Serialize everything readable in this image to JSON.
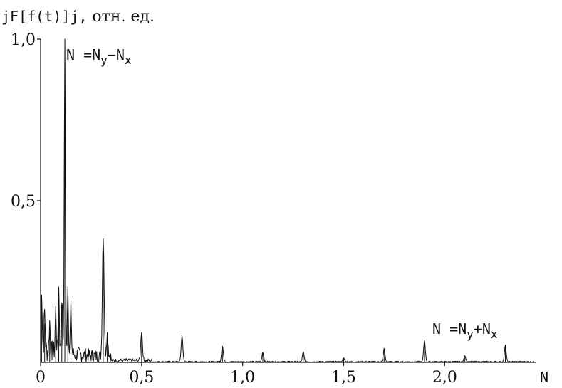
{
  "chart_data": {
    "type": "line",
    "ylabel_prefix": "jF[f(t)]j,",
    "ylabel_suffix": " отн. ед.",
    "xlabel": "N",
    "xlim": [
      0,
      2.45
    ],
    "ylim": [
      0,
      1.0
    ],
    "x_ticks": [
      {
        "value": 0,
        "label": "0"
      },
      {
        "value": 0.5,
        "label": "0,5"
      },
      {
        "value": 1.0,
        "label": "1,0"
      },
      {
        "value": 1.5,
        "label": "1,5"
      },
      {
        "value": 2.0,
        "label": "2,0"
      }
    ],
    "y_ticks": [
      {
        "value": 0.5,
        "label": "0,5"
      },
      {
        "value": 1.0,
        "label": "1,0"
      }
    ],
    "annotations": [
      {
        "text": "N =N y−N x",
        "parts": [
          "N =N",
          "y",
          "−N",
          "x"
        ]
      },
      {
        "text": "N =N y+N x",
        "parts": [
          "N =N",
          "y",
          "+N",
          "x"
        ]
      }
    ],
    "peaks": [
      {
        "x": 0.005,
        "y": 0.2
      },
      {
        "x": 0.02,
        "y": 0.12
      },
      {
        "x": 0.045,
        "y": 0.09
      },
      {
        "x": 0.075,
        "y": 0.13
      },
      {
        "x": 0.09,
        "y": 0.2
      },
      {
        "x": 0.105,
        "y": 0.18
      },
      {
        "x": 0.12,
        "y": 1.0
      },
      {
        "x": 0.135,
        "y": 0.21
      },
      {
        "x": 0.15,
        "y": 0.14
      },
      {
        "x": 0.31,
        "y": 0.38
      },
      {
        "x": 0.33,
        "y": 0.07
      },
      {
        "x": 0.5,
        "y": 0.09
      },
      {
        "x": 0.7,
        "y": 0.08
      },
      {
        "x": 0.9,
        "y": 0.05
      },
      {
        "x": 1.1,
        "y": 0.03
      },
      {
        "x": 1.3,
        "y": 0.03
      },
      {
        "x": 1.5,
        "y": 0.012
      },
      {
        "x": 1.7,
        "y": 0.04
      },
      {
        "x": 1.9,
        "y": 0.065
      },
      {
        "x": 2.1,
        "y": 0.02
      },
      {
        "x": 2.3,
        "y": 0.05
      }
    ],
    "grid": false
  }
}
